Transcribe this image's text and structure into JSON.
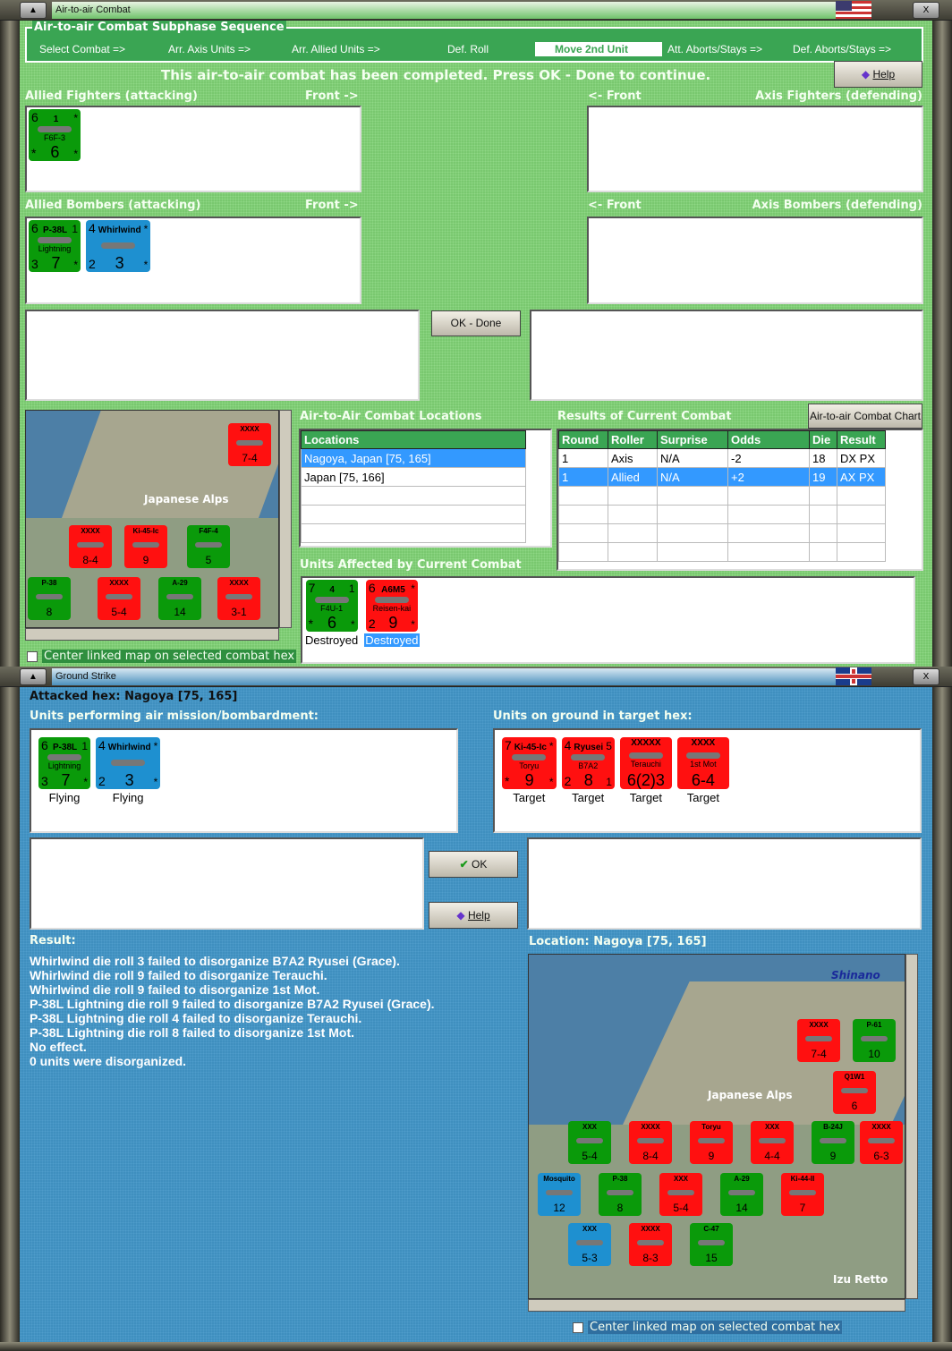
{
  "air_window": {
    "title": "Air-to-air Combat",
    "sequence_title": "Air-to-air Combat Subphase Sequence",
    "sequence": [
      "Select Combat =>",
      "Arr. Axis Units =>",
      "Arr. Allied Units =>",
      "Def. Roll",
      "Move 2nd Unit",
      "Att. Aborts/Stays =>",
      "Def. Aborts/Stays =>"
    ],
    "current_step": "Move 2nd Unit",
    "message": "This air-to-air combat has been completed.  Press OK - Done to continue.",
    "help_label": "Help",
    "allied_fighters_label": "Allied Fighters (attacking)",
    "axis_fighters_label": "Axis Fighters (defending)",
    "allied_bombers_label": "Allied Bombers (attacking)",
    "axis_bombers_label": "Axis Bombers (defending)",
    "front_right": "Front ->",
    "front_left": "<- Front",
    "ok_done_label": "OK - Done",
    "locations_title": "Air-to-Air Combat Locations",
    "locations_header": "Locations",
    "locations": [
      "Nagoya, Japan [75, 165]",
      "Japan [75, 166]"
    ],
    "results_title": "Results of Current Combat",
    "chart_button": "Air-to-air Combat Chart",
    "results_headers": [
      "Round",
      "Roller",
      "Surprise",
      "Odds",
      "Die",
      "Result"
    ],
    "results_rows": [
      [
        "1",
        "Axis",
        "N/A",
        "-2",
        "18",
        "DX PX"
      ],
      [
        "1",
        "Allied",
        "N/A",
        "+2",
        "19",
        "AX PX"
      ]
    ],
    "affected_title": "Units Affected by Current Combat",
    "center_map_label": "Center linked map on selected combat hex",
    "map_label": "Japanese Alps",
    "flag": "usa-flag"
  },
  "ground_window": {
    "title": "Ground Strike",
    "attacked_hex": "Attacked hex: Nagoya  [75, 165]",
    "air_units_label": "Units performing air mission/bombardment:",
    "ground_units_label": "Units on ground in target hex:",
    "ok_label": "OK",
    "help_label": "Help",
    "result_label": "Result:",
    "result_lines": [
      "Whirlwind die roll 3 failed to disorganize B7A2 Ryusei (Grace).",
      "Whirlwind die roll 9 failed to disorganize Terauchi.",
      "Whirlwind die roll 9 failed to disorganize 1st Mot.",
      "P-38L Lightning die roll 9 failed to disorganize B7A2 Ryusei (Grace).",
      "P-38L Lightning die roll 4 failed to disorganize Terauchi.",
      "P-38L Lightning die roll 8 failed to disorganize 1st Mot.",
      "No effect.",
      "0 units were disorganized."
    ],
    "location_label": "Location:  Nagoya  [75, 165]",
    "center_map_label": "Center linked map on selected combat hex",
    "map_labels": [
      "Shinano",
      "Japanese Alps",
      "Izu Retto"
    ],
    "flag": "uk-flag"
  },
  "counters": {
    "allied_fighters": [
      {
        "color": "#0a9a0a",
        "tl": "6",
        "tc": "1",
        "tr": "*",
        "bc": "6",
        "bl": "*",
        "mid": "F6F-3",
        "br": "*"
      }
    ],
    "allied_bombers": [
      {
        "color": "#0a9a0a",
        "tl": "6",
        "tc": "P-38L",
        "tr": "1",
        "mid": "Lightning",
        "bl": "3",
        "bc": "7",
        "br": "*"
      },
      {
        "color": "#1e90d0",
        "tl": "4",
        "tc": "Whirlwind",
        "tr": "*",
        "bl": "2",
        "bc": "3",
        "br": "*"
      }
    ],
    "affected": [
      {
        "color": "#0a9a0a",
        "tl": "7",
        "tc": "4",
        "tr": "1",
        "mid": "F4U-1",
        "bc": "6",
        "bl": "*",
        "br": "*",
        "caption": "Destroyed"
      },
      {
        "color": "#ff1010",
        "tl": "6",
        "tc": "A6M5",
        "tr": "*",
        "mid": "Reisen-kai",
        "bl": "2",
        "bc": "9",
        "br": "*",
        "caption": "Destroyed",
        "selected": true
      }
    ],
    "air_mission": [
      {
        "color": "#0a9a0a",
        "tl": "6",
        "tc": "P-38L",
        "tr": "1",
        "mid": "Lightning",
        "bl": "3",
        "bc": "7",
        "br": "*",
        "caption": "Flying"
      },
      {
        "color": "#1e90d0",
        "tl": "4",
        "tc": "Whirlwind",
        "tr": "*",
        "bl": "2",
        "bc": "3",
        "br": "*",
        "caption": "Flying"
      }
    ],
    "ground_targets": [
      {
        "color": "#ff1010",
        "tl": "7",
        "tc": "Ki-45-Ic",
        "tr": "*",
        "mid": "Toryu",
        "bl": "*",
        "bc": "9",
        "br": "*",
        "caption": "Target"
      },
      {
        "color": "#ff1010",
        "tl": "4",
        "tc": "Ryusei",
        "tr": "5",
        "mid": "B7A2",
        "bl": "2",
        "bc": "8",
        "br": "1",
        "caption": "Target"
      },
      {
        "color": "#ff1010",
        "tl": "",
        "tc": "XXXXX",
        "tr": "",
        "mid": "Terauchi",
        "bl": "",
        "bc": "6(2)3",
        "br": "",
        "caption": "Target"
      },
      {
        "color": "#ff1010",
        "tl": "",
        "tc": "XXXX",
        "tr": "",
        "mid": "1st Mot",
        "bl": "",
        "bc": "6-4",
        "br": "",
        "caption": "Target"
      }
    ],
    "map1": [
      {
        "color": "#ff1010",
        "tc": "XXXX",
        "bc": "7-4"
      },
      {
        "color": "#ff1010",
        "tc": "XXXX",
        "bc": "8-4"
      },
      {
        "color": "#ff1010",
        "tc": "Ki-45-Ic",
        "bc": "9"
      },
      {
        "color": "#0a9a0a",
        "tc": "F4F-4",
        "bc": "5"
      },
      {
        "color": "#0a9a0a",
        "tc": "P-38",
        "bc": "8"
      },
      {
        "color": "#ff1010",
        "tc": "XXXX",
        "bc": "5-4"
      },
      {
        "color": "#0a9a0a",
        "tc": "A-29",
        "bc": "14"
      },
      {
        "color": "#ff1010",
        "tc": "XXXX",
        "bc": "3-1"
      }
    ],
    "map2": [
      {
        "color": "#ff1010",
        "tc": "XXXX",
        "bc": "7-4"
      },
      {
        "color": "#0a9a0a",
        "tc": "P-61",
        "bc": "10"
      },
      {
        "color": "#ff1010",
        "tc": "Q1W1",
        "bc": "6"
      },
      {
        "color": "#0a9a0a",
        "tc": "XXX",
        "bc": "5-4"
      },
      {
        "color": "#ff1010",
        "tc": "XXXX",
        "bc": "8-4"
      },
      {
        "color": "#ff1010",
        "tc": "Toryu",
        "bc": "9"
      },
      {
        "color": "#ff1010",
        "tc": "XXX",
        "bc": "4-4"
      },
      {
        "color": "#0a9a0a",
        "tc": "B-24J",
        "bc": "9"
      },
      {
        "color": "#ff1010",
        "tc": "XXXX",
        "bc": "6-3"
      },
      {
        "color": "#1e90d0",
        "tc": "Mosquito",
        "bc": "12"
      },
      {
        "color": "#0a9a0a",
        "tc": "P-38",
        "bc": "8"
      },
      {
        "color": "#ff1010",
        "tc": "XXX",
        "bc": "5-4"
      },
      {
        "color": "#0a9a0a",
        "tc": "A-29",
        "bc": "14"
      },
      {
        "color": "#ff1010",
        "tc": "Ki-44-II",
        "bc": "7"
      },
      {
        "color": "#1e90d0",
        "tc": "XXX",
        "bc": "5-3"
      },
      {
        "color": "#ff1010",
        "tc": "XXXX",
        "bc": "8-3"
      },
      {
        "color": "#0a9a0a",
        "tc": "C-47",
        "bc": "15"
      }
    ]
  }
}
